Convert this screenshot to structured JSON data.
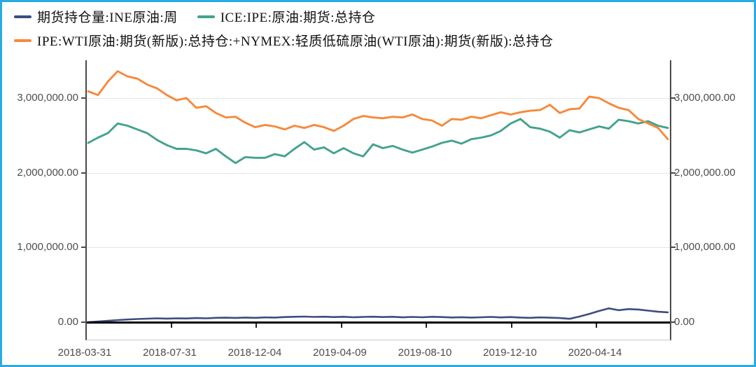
{
  "frame": {
    "border_color": "#29abe2",
    "background": "#ffffff"
  },
  "legend": {
    "position": "top-left",
    "items": [
      {
        "label": "期货持仓量:INE原油:周",
        "color": "#3e4d7e"
      },
      {
        "label": "ICE:IPE:原油:期货:总持仓",
        "color": "#44a28e"
      },
      {
        "label": "IPE:WTI原油:期货(新版):总持仓:+NYMEX:轻质低硫原油(WTI原油):期货(新版):总持仓",
        "color": "#f58a3c"
      }
    ]
  },
  "axes": {
    "y_left_labels": [
      "0.00",
      "1,000,000.00",
      "2,000,000.00",
      "3,000,000.00"
    ],
    "y_right_labels": [
      "0.00",
      "1,000,000.00",
      "2,000,000.00",
      "3,000,000.00"
    ],
    "x_labels": [
      "2018-03-31",
      "2018-07-31",
      "2018-12-04",
      "2019-04-09",
      "2019-08-10",
      "2019-12-10",
      "2020-04-14"
    ],
    "text_color": "#4d4d4d"
  },
  "chart_data": {
    "type": "line",
    "title": "",
    "xlabel": "",
    "ylabel": "",
    "x_start": "2018-03-31",
    "x_step_days": 14,
    "x_tick_labels": [
      "2018-03-31",
      "2018-07-31",
      "2018-12-04",
      "2019-04-09",
      "2019-08-10",
      "2019-12-10",
      "2020-04-14"
    ],
    "y_tick_values": [
      0,
      1000000,
      2000000,
      3000000
    ],
    "y_tick_labels": [
      "0.00",
      "1,000,000.00",
      "2,000,000.00",
      "3,000,000.00"
    ],
    "ylim": [
      -240000,
      3490000
    ],
    "grid": "horizontal",
    "legend_position": "top-left",
    "zero_axis_color": "#000000",
    "series": [
      {
        "name": "期货持仓量:INE原油:周",
        "color": "#3e4d7e",
        "values": [
          0,
          9000,
          19000,
          28000,
          36000,
          42000,
          47000,
          52000,
          48000,
          52000,
          50000,
          55000,
          52000,
          58000,
          60000,
          57000,
          62000,
          58000,
          64000,
          62000,
          68000,
          72000,
          75000,
          70000,
          73000,
          68000,
          72000,
          66000,
          70000,
          73000,
          68000,
          72000,
          65000,
          70000,
          66000,
          72000,
          68000,
          63000,
          67000,
          62000,
          66000,
          70000,
          64000,
          68000,
          62000,
          58000,
          64000,
          60000,
          55000,
          45000,
          75000,
          110000,
          150000,
          185000,
          160000,
          175000,
          170000,
          155000,
          140000,
          132000
        ]
      },
      {
        "name": "ICE:IPE:原油:期货:总持仓",
        "color": "#44a28e",
        "values": [
          2400000,
          2470000,
          2530000,
          2660000,
          2630000,
          2580000,
          2530000,
          2440000,
          2370000,
          2320000,
          2320000,
          2300000,
          2260000,
          2320000,
          2220000,
          2130000,
          2210000,
          2200000,
          2200000,
          2250000,
          2220000,
          2320000,
          2410000,
          2310000,
          2340000,
          2260000,
          2330000,
          2260000,
          2220000,
          2380000,
          2330000,
          2360000,
          2310000,
          2270000,
          2310000,
          2350000,
          2400000,
          2430000,
          2390000,
          2450000,
          2470000,
          2500000,
          2560000,
          2660000,
          2720000,
          2610000,
          2590000,
          2550000,
          2470000,
          2570000,
          2540000,
          2580000,
          2620000,
          2590000,
          2710000,
          2690000,
          2660000,
          2690000,
          2630000,
          2600000
        ]
      },
      {
        "name": "IPE:WTI原油:期货(新版):总持仓:+NYMEX:轻质低硫原油(WTI原油):期货(新版):总持仓",
        "color": "#f58a3c",
        "values": [
          3090000,
          3040000,
          3220000,
          3360000,
          3290000,
          3260000,
          3180000,
          3130000,
          3040000,
          2970000,
          3000000,
          2870000,
          2890000,
          2800000,
          2740000,
          2750000,
          2670000,
          2610000,
          2640000,
          2620000,
          2580000,
          2630000,
          2600000,
          2640000,
          2610000,
          2560000,
          2630000,
          2720000,
          2760000,
          2740000,
          2730000,
          2750000,
          2740000,
          2780000,
          2720000,
          2700000,
          2630000,
          2720000,
          2710000,
          2750000,
          2730000,
          2770000,
          2810000,
          2780000,
          2810000,
          2830000,
          2840000,
          2910000,
          2800000,
          2850000,
          2860000,
          3020000,
          3000000,
          2930000,
          2870000,
          2840000,
          2720000,
          2660000,
          2600000,
          2450000
        ]
      }
    ]
  }
}
